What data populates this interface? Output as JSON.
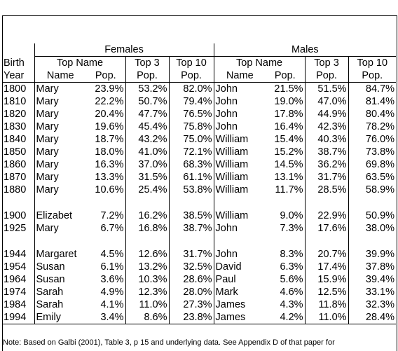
{
  "headers": {
    "females": "Females",
    "males": "Males",
    "birth": "Birth",
    "year": "Year",
    "top_name": "Top Name",
    "name": "Name",
    "pop": "Pop.",
    "top3": "Top 3",
    "top10": "Top 10"
  },
  "groups": [
    [
      {
        "year": "1800",
        "f_name": "Mary",
        "f_pop": "23.9%",
        "f_top3": "53.2%",
        "f_top10": "82.0%",
        "m_name": "John",
        "m_pop": "21.5%",
        "m_top3": "51.5%",
        "m_top10": "84.7%"
      },
      {
        "year": "1810",
        "f_name": "Mary",
        "f_pop": "22.2%",
        "f_top3": "50.7%",
        "f_top10": "79.4%",
        "m_name": "John",
        "m_pop": "19.0%",
        "m_top3": "47.0%",
        "m_top10": "81.4%"
      },
      {
        "year": "1820",
        "f_name": "Mary",
        "f_pop": "20.4%",
        "f_top3": "47.7%",
        "f_top10": "76.5%",
        "m_name": "John",
        "m_pop": "17.8%",
        "m_top3": "44.9%",
        "m_top10": "80.4%"
      },
      {
        "year": "1830",
        "f_name": "Mary",
        "f_pop": "19.6%",
        "f_top3": "45.4%",
        "f_top10": "75.8%",
        "m_name": "John",
        "m_pop": "16.4%",
        "m_top3": "42.3%",
        "m_top10": "78.2%"
      },
      {
        "year": "1840",
        "f_name": "Mary",
        "f_pop": "18.7%",
        "f_top3": "43.2%",
        "f_top10": "75.0%",
        "m_name": "William",
        "m_pop": "15.4%",
        "m_top3": "40.3%",
        "m_top10": "76.0%"
      },
      {
        "year": "1850",
        "f_name": "Mary",
        "f_pop": "18.0%",
        "f_top3": "41.0%",
        "f_top10": "72.1%",
        "m_name": "William",
        "m_pop": "15.2%",
        "m_top3": "38.7%",
        "m_top10": "73.8%"
      },
      {
        "year": "1860",
        "f_name": "Mary",
        "f_pop": "16.3%",
        "f_top3": "37.0%",
        "f_top10": "68.3%",
        "m_name": "William",
        "m_pop": "14.5%",
        "m_top3": "36.2%",
        "m_top10": "69.8%"
      },
      {
        "year": "1870",
        "f_name": "Mary",
        "f_pop": "13.3%",
        "f_top3": "31.5%",
        "f_top10": "61.1%",
        "m_name": "William",
        "m_pop": "13.1%",
        "m_top3": "31.7%",
        "m_top10": "63.5%"
      },
      {
        "year": "1880",
        "f_name": "Mary",
        "f_pop": "10.6%",
        "f_top3": "25.4%",
        "f_top10": "53.8%",
        "m_name": "William",
        "m_pop": "11.7%",
        "m_top3": "28.5%",
        "m_top10": "58.9%"
      }
    ],
    [
      {
        "year": "1900",
        "f_name": "Elizabet",
        "f_pop": "7.2%",
        "f_top3": "16.2%",
        "f_top10": "38.5%",
        "m_name": "William",
        "m_pop": "9.0%",
        "m_top3": "22.9%",
        "m_top10": "50.9%"
      },
      {
        "year": "1925",
        "f_name": "Mary",
        "f_pop": "6.7%",
        "f_top3": "16.8%",
        "f_top10": "38.7%",
        "m_name": "John",
        "m_pop": "7.3%",
        "m_top3": "17.6%",
        "m_top10": "38.0%"
      }
    ],
    [
      {
        "year": "1944",
        "f_name": "Margaret",
        "f_pop": "4.5%",
        "f_top3": "12.6%",
        "f_top10": "31.7%",
        "m_name": "John",
        "m_pop": "8.3%",
        "m_top3": "20.7%",
        "m_top10": "39.9%"
      },
      {
        "year": "1954",
        "f_name": "Susan",
        "f_pop": "6.1%",
        "f_top3": "13.2%",
        "f_top10": "32.5%",
        "m_name": "David",
        "m_pop": "6.3%",
        "m_top3": "17.4%",
        "m_top10": "37.8%"
      },
      {
        "year": "1964",
        "f_name": "Susan",
        "f_pop": "3.6%",
        "f_top3": "10.3%",
        "f_top10": "28.6%",
        "m_name": "Paul",
        "m_pop": "5.6%",
        "m_top3": "15.9%",
        "m_top10": "39.4%"
      },
      {
        "year": "1974",
        "f_name": "Sarah",
        "f_pop": "4.9%",
        "f_top3": "12.3%",
        "f_top10": "28.0%",
        "m_name": "Mark",
        "m_pop": "4.6%",
        "m_top3": "12.5%",
        "m_top10": "33.1%"
      },
      {
        "year": "1984",
        "f_name": "Sarah",
        "f_pop": "4.1%",
        "f_top3": "11.0%",
        "f_top10": "27.3%",
        "m_name": "James",
        "m_pop": "4.3%",
        "m_top3": "11.8%",
        "m_top10": "32.3%"
      },
      {
        "year": "1994",
        "f_name": "Emily",
        "f_pop": "3.4%",
        "f_top3": "8.6%",
        "f_top10": "23.8%",
        "m_name": "James",
        "m_pop": "4.2%",
        "m_top3": "11.0%",
        "m_top10": "28.4%"
      }
    ]
  ],
  "note": "Note: Based on Galbi (2001), Table 3, p 15 and underlying data.  See Appendix D of that paper for"
}
